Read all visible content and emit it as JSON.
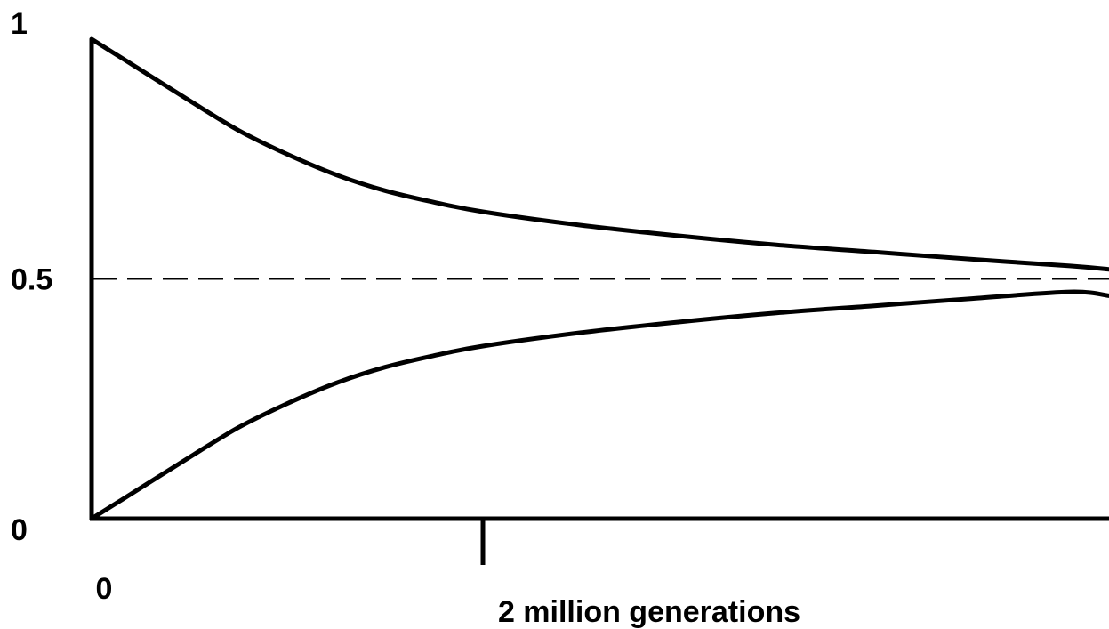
{
  "chart_data": {
    "type": "line",
    "title": "",
    "xlabel": "",
    "ylabel": "",
    "xlim": [
      0,
      5.2
    ],
    "ylim": [
      0,
      1
    ],
    "y_ticks": [
      {
        "value": 1,
        "label": "1"
      },
      {
        "value": 0.5,
        "label": "0.5"
      },
      {
        "value": 0,
        "label": "0"
      }
    ],
    "x_ticks": [
      {
        "value": 0,
        "label": "0"
      },
      {
        "value": 2,
        "label": "2 million generations"
      }
    ],
    "reference_lines": [
      {
        "axis": "y",
        "value": 0.5,
        "style": "dashed"
      }
    ],
    "series": [
      {
        "x": [
          0,
          0.25,
          0.5,
          0.75,
          1,
          1.25,
          1.5,
          1.75,
          2,
          2.5,
          3,
          3.5,
          4,
          4.5,
          5,
          5.2
        ],
        "y": [
          1,
          0.936,
          0.872,
          0.81,
          0.76,
          0.717,
          0.684,
          0.66,
          0.64,
          0.612,
          0.59,
          0.571,
          0.556,
          0.541,
          0.527,
          0.52
        ]
      },
      {
        "x": [
          0,
          0.25,
          0.5,
          0.75,
          1,
          1.25,
          1.5,
          1.75,
          2,
          2.5,
          3,
          3.5,
          4,
          4.5,
          5,
          5.2
        ],
        "y": [
          0,
          0.064,
          0.128,
          0.19,
          0.24,
          0.283,
          0.316,
          0.34,
          0.36,
          0.388,
          0.41,
          0.429,
          0.444,
          0.459,
          0.473,
          0.465
        ]
      }
    ],
    "colors": {
      "line": "#000000",
      "background": "#ffffff"
    }
  }
}
